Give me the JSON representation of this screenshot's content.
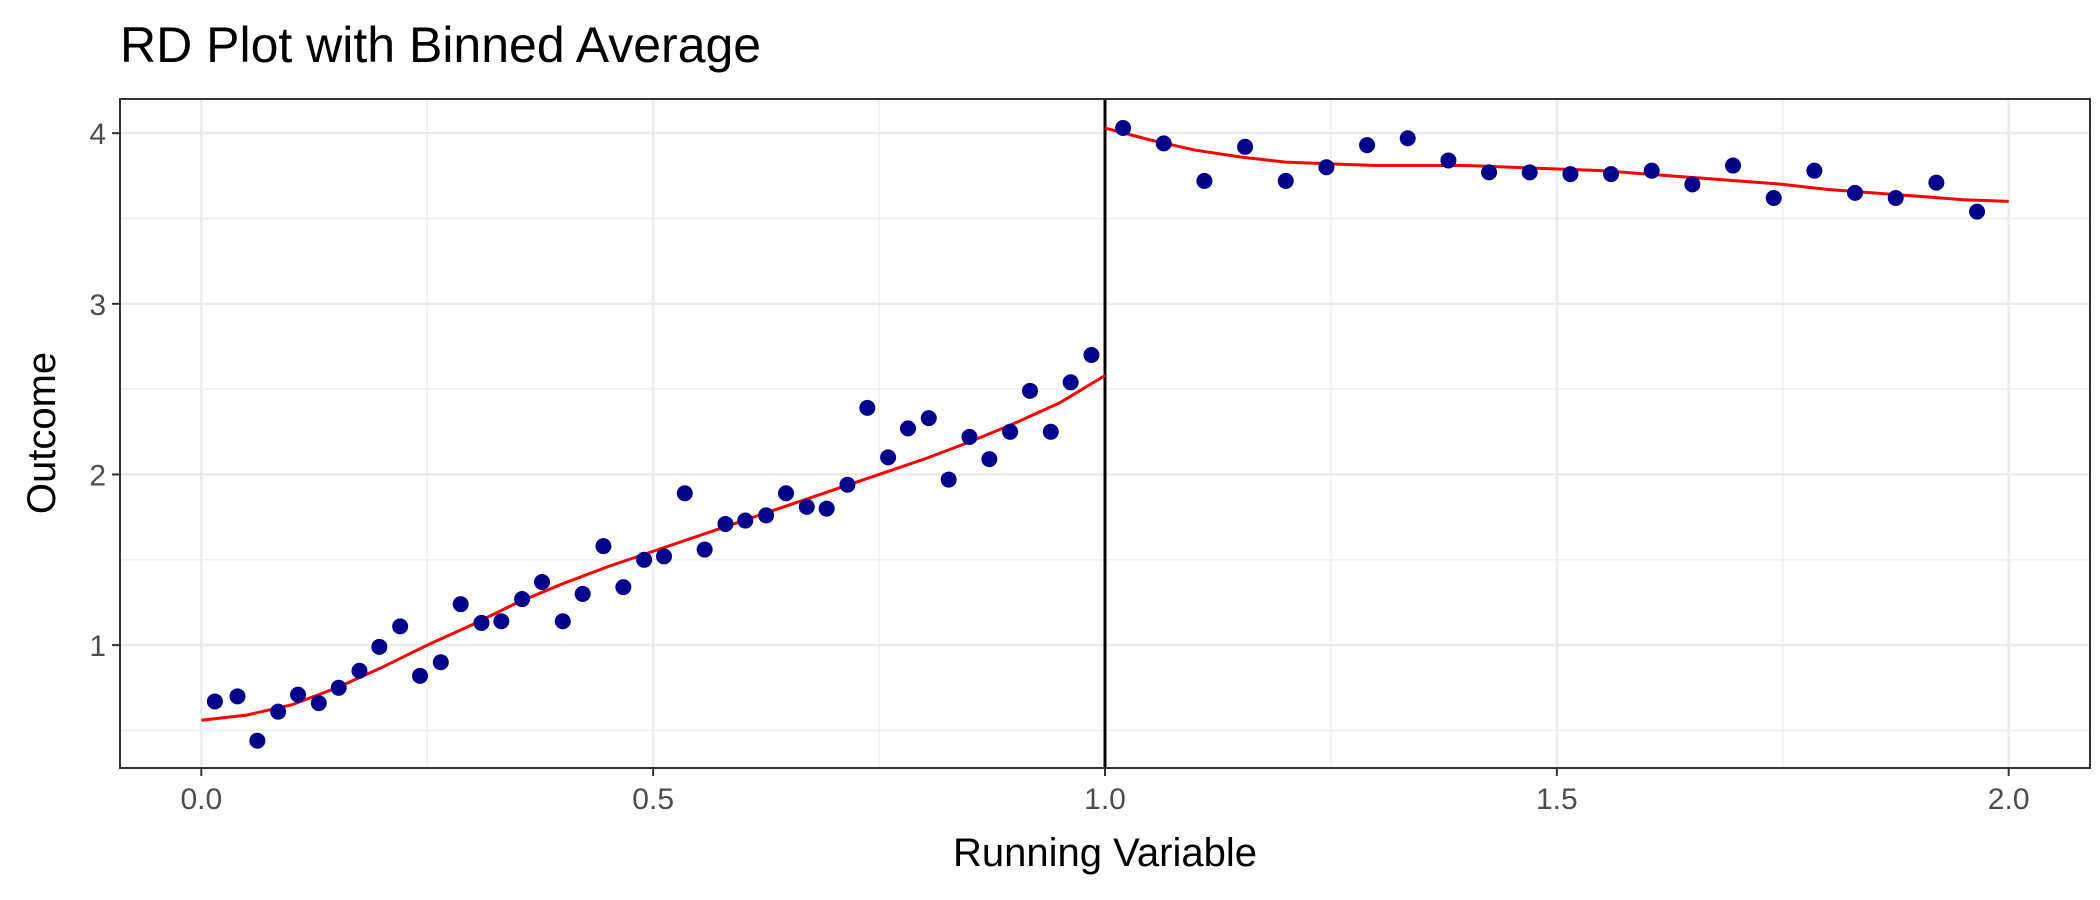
{
  "chart_data": {
    "type": "scatter",
    "title": "RD Plot with Binned Average",
    "xlabel": "Running Variable",
    "ylabel": "Outcome",
    "xlim": [
      -0.09,
      2.09
    ],
    "ylim": [
      0.28,
      4.2
    ],
    "xticks": [
      0.0,
      0.5,
      1.0,
      1.5,
      2.0
    ],
    "xtick_labels": [
      "0.0",
      "0.5",
      "1.0",
      "1.5",
      "2.0"
    ],
    "yticks": [
      1,
      2,
      3,
      4
    ],
    "ytick_labels": [
      "1",
      "2",
      "3",
      "4"
    ],
    "grid": true,
    "cutoff": 1.0,
    "colors": {
      "points": "#00008B",
      "fit": "#FF0000",
      "cutoff": "#000000",
      "grid": "#EBEBEB"
    },
    "series": [
      {
        "type": "scatter",
        "x": [
          0.015,
          0.04,
          0.062,
          0.085,
          0.107,
          0.13,
          0.152,
          0.175,
          0.197,
          0.22,
          0.242,
          0.265,
          0.287,
          0.31,
          0.332,
          0.355,
          0.377,
          0.4,
          0.422,
          0.445,
          0.467,
          0.49,
          0.512,
          0.535,
          0.557,
          0.58,
          0.602,
          0.625,
          0.647,
          0.67,
          0.692,
          0.715,
          0.737,
          0.76,
          0.782,
          0.805,
          0.827,
          0.85,
          0.872,
          0.895,
          0.917,
          0.94,
          0.962,
          0.985,
          1.02,
          1.065,
          1.11,
          1.155,
          1.2,
          1.245,
          1.29,
          1.335,
          1.38,
          1.425,
          1.47,
          1.515,
          1.56,
          1.605,
          1.65,
          1.695,
          1.74,
          1.785,
          1.83,
          1.875,
          1.92,
          1.965
        ],
        "y": [
          0.67,
          0.7,
          0.44,
          0.61,
          0.71,
          0.66,
          0.75,
          0.85,
          0.99,
          1.11,
          0.82,
          0.9,
          1.24,
          1.13,
          1.14,
          1.27,
          1.37,
          1.14,
          1.3,
          1.58,
          1.34,
          1.5,
          1.52,
          1.89,
          1.56,
          1.71,
          1.73,
          1.76,
          1.89,
          1.81,
          1.8,
          1.94,
          2.39,
          2.1,
          2.27,
          2.33,
          1.97,
          2.22,
          2.09,
          2.25,
          2.49,
          2.25,
          2.54,
          2.7,
          4.03,
          3.94,
          3.72,
          3.92,
          3.72,
          3.8,
          3.93,
          3.97,
          3.84,
          3.77,
          3.77,
          3.76,
          3.76,
          3.78,
          3.7,
          3.81,
          3.62,
          3.78,
          3.65,
          3.62,
          3.71,
          3.54
        ]
      },
      {
        "type": "line",
        "x": [
          0.0,
          0.05,
          0.1,
          0.15,
          0.2,
          0.25,
          0.3,
          0.35,
          0.4,
          0.45,
          0.5,
          0.55,
          0.6,
          0.65,
          0.7,
          0.75,
          0.8,
          0.85,
          0.9,
          0.95,
          1.0
        ],
        "y": [
          0.56,
          0.59,
          0.65,
          0.75,
          0.87,
          1.0,
          1.12,
          1.25,
          1.36,
          1.46,
          1.55,
          1.64,
          1.73,
          1.82,
          1.91,
          2.0,
          2.09,
          2.19,
          2.3,
          2.42,
          2.58
        ]
      },
      {
        "type": "line",
        "x": [
          1.0,
          1.05,
          1.1,
          1.15,
          1.2,
          1.25,
          1.3,
          1.35,
          1.4,
          1.45,
          1.5,
          1.55,
          1.6,
          1.65,
          1.7,
          1.75,
          1.8,
          1.85,
          1.9,
          1.95,
          2.0
        ],
        "y": [
          4.03,
          3.96,
          3.9,
          3.86,
          3.83,
          3.82,
          3.81,
          3.81,
          3.81,
          3.8,
          3.79,
          3.78,
          3.76,
          3.74,
          3.72,
          3.7,
          3.67,
          3.65,
          3.63,
          3.61,
          3.6
        ]
      }
    ]
  }
}
